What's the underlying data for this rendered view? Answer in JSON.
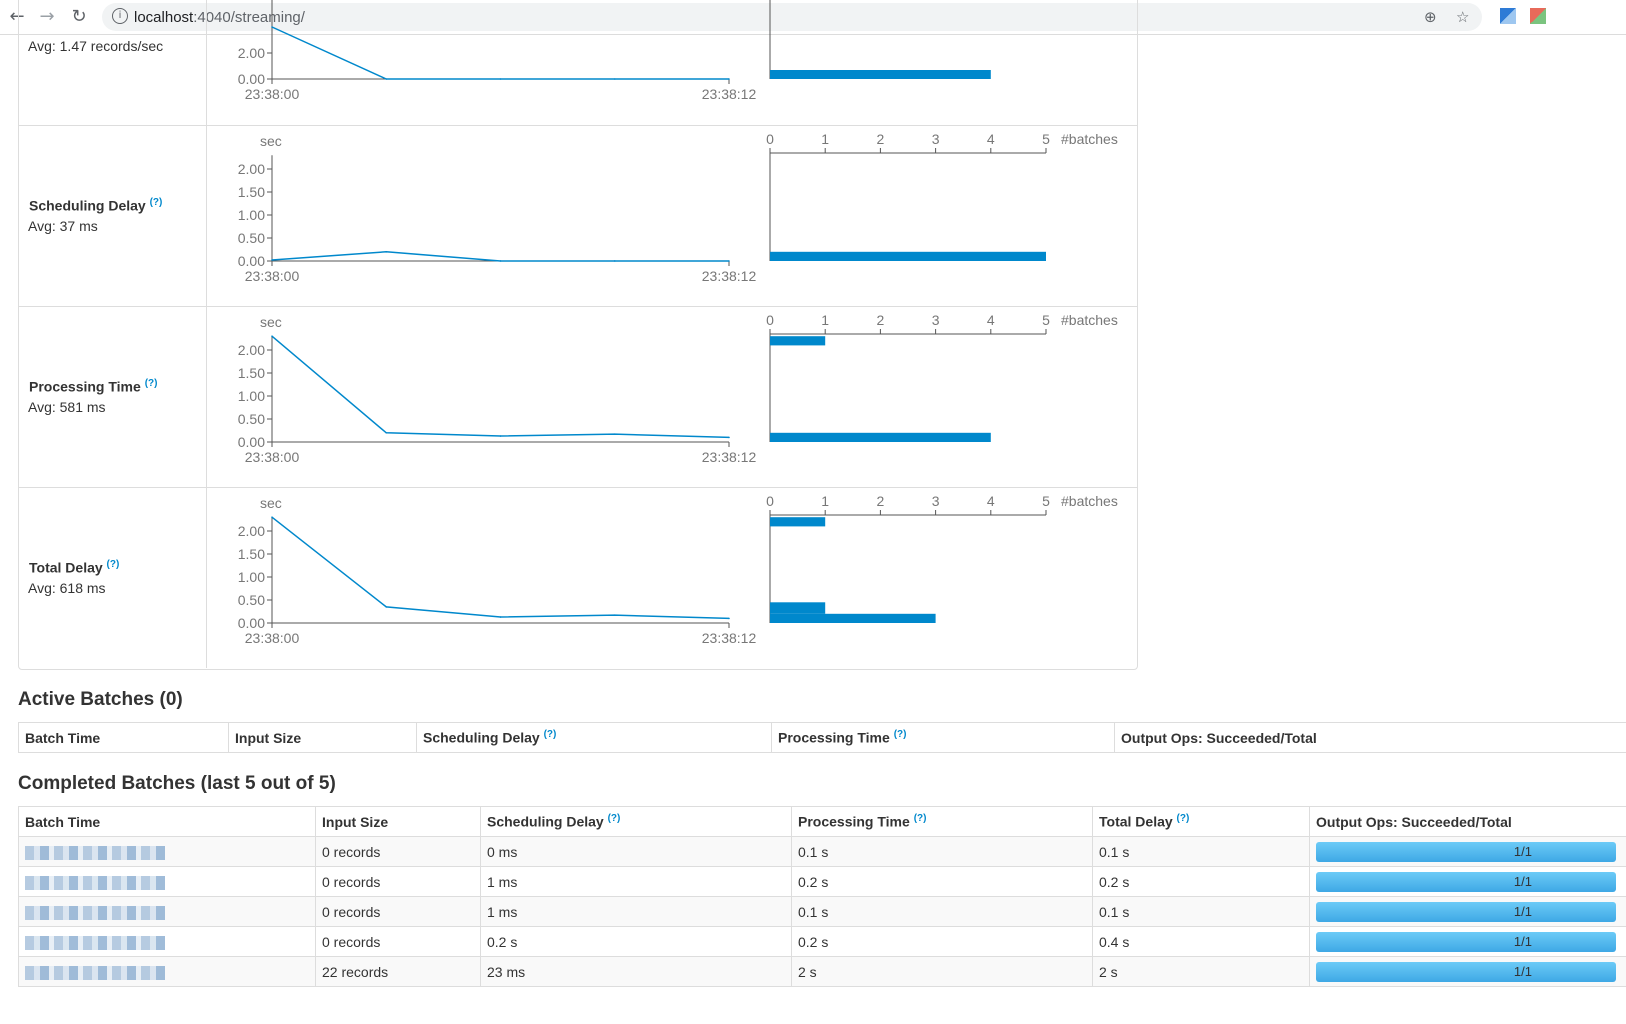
{
  "browser": {
    "url_host": "localhost",
    "url_rest": ":4040/streaming/"
  },
  "metrics": [
    {
      "label": "",
      "avg": "Avg: 1.47 records/sec",
      "yticks": [
        "2.00",
        "0.00"
      ],
      "xticks": [
        "23:38:00",
        "23:38:12"
      ]
    },
    {
      "label": "Scheduling Delay",
      "help": "(?)",
      "avg": "Avg: 37 ms",
      "unit": "sec",
      "yticks": [
        "2.00",
        "1.50",
        "1.00",
        "0.50",
        "0.00"
      ],
      "xticks": [
        "23:38:00",
        "23:38:12"
      ],
      "hist_ticks": [
        "0",
        "1",
        "2",
        "3",
        "4",
        "5"
      ],
      "hist_unit": "#batches"
    },
    {
      "label": "Processing Time",
      "help": "(?)",
      "avg": "Avg: 581 ms",
      "unit": "sec",
      "yticks": [
        "2.00",
        "1.50",
        "1.00",
        "0.50",
        "0.00"
      ],
      "xticks": [
        "23:38:00",
        "23:38:12"
      ],
      "hist_ticks": [
        "0",
        "1",
        "2",
        "3",
        "4",
        "5"
      ],
      "hist_unit": "#batches"
    },
    {
      "label": "Total Delay",
      "help": "(?)",
      "avg": "Avg: 618 ms",
      "unit": "sec",
      "yticks": [
        "2.00",
        "1.50",
        "1.00",
        "0.50",
        "0.00"
      ],
      "xticks": [
        "23:38:00",
        "23:38:12"
      ],
      "hist_ticks": [
        "0",
        "1",
        "2",
        "3",
        "4",
        "5"
      ],
      "hist_unit": "#batches"
    }
  ],
  "chart_data": [
    {
      "type": "line",
      "x": [
        "23:38:00",
        "23:38:03",
        "23:38:06",
        "23:38:09",
        "23:38:12"
      ],
      "series": [
        {
          "values": [
            4.0,
            0.0,
            0.0,
            0.0,
            0.0
          ]
        }
      ],
      "histogram": [
        {
          "bin_top": 0.0,
          "bin_bottom": -0.5,
          "count": 4
        }
      ]
    },
    {
      "type": "line",
      "x": [
        "23:38:00",
        "23:38:03",
        "23:38:06",
        "23:38:09",
        "23:38:12"
      ],
      "series": [
        {
          "values": [
            0.023,
            0.2,
            0.001,
            0.001,
            0.0
          ]
        }
      ],
      "ylim": [
        0,
        2.3
      ],
      "histogram": [
        {
          "bin_top": 0.2,
          "bin_bottom": 0.0,
          "count": 5
        }
      ]
    },
    {
      "type": "line",
      "x": [
        "23:38:00",
        "23:38:03",
        "23:38:06",
        "23:38:09",
        "23:38:12"
      ],
      "series": [
        {
          "values": [
            2.3,
            0.2,
            0.13,
            0.17,
            0.1
          ]
        }
      ],
      "ylim": [
        0,
        2.3
      ],
      "histogram": [
        {
          "bin_top": 2.3,
          "bin_bottom": 2.1,
          "count": 1
        },
        {
          "bin_top": 0.2,
          "bin_bottom": 0.0,
          "count": 4
        }
      ]
    },
    {
      "type": "line",
      "x": [
        "23:38:00",
        "23:38:03",
        "23:38:06",
        "23:38:09",
        "23:38:12"
      ],
      "series": [
        {
          "values": [
            2.3,
            0.35,
            0.13,
            0.17,
            0.1
          ]
        }
      ],
      "ylim": [
        0,
        2.3
      ],
      "histogram": [
        {
          "bin_top": 2.3,
          "bin_bottom": 2.1,
          "count": 1
        },
        {
          "bin_top": 0.45,
          "bin_bottom": 0.2,
          "count": 1
        },
        {
          "bin_top": 0.2,
          "bin_bottom": 0.0,
          "count": 3
        }
      ]
    }
  ],
  "active": {
    "title": "Active Batches (0)",
    "headers": [
      "Batch Time",
      "Input Size",
      "Scheduling Delay",
      "Processing Time",
      "Output Ops: Succeeded/Total"
    ]
  },
  "completed": {
    "title": "Completed Batches (last 5 out of 5)",
    "headers": [
      "Batch Time",
      "Input Size",
      "Scheduling Delay",
      "Processing Time",
      "Total Delay",
      "Output Ops: Succeeded/Total"
    ],
    "help": "(?)",
    "rows": [
      {
        "input": "0 records",
        "sched": "0 ms",
        "proc": "0.1 s",
        "total": "0.1 s",
        "ops": "1/1",
        "progress": 1.0
      },
      {
        "input": "0 records",
        "sched": "1 ms",
        "proc": "0.2 s",
        "total": "0.2 s",
        "ops": "1/1",
        "progress": 1.0
      },
      {
        "input": "0 records",
        "sched": "1 ms",
        "proc": "0.1 s",
        "total": "0.1 s",
        "ops": "1/1",
        "progress": 1.0
      },
      {
        "input": "0 records",
        "sched": "0.2 s",
        "proc": "0.2 s",
        "total": "0.4 s",
        "ops": "1/1",
        "progress": 1.0
      },
      {
        "input": "22 records",
        "sched": "23 ms",
        "proc": "2 s",
        "total": "2 s",
        "ops": "1/1",
        "progress": 1.0
      }
    ]
  }
}
